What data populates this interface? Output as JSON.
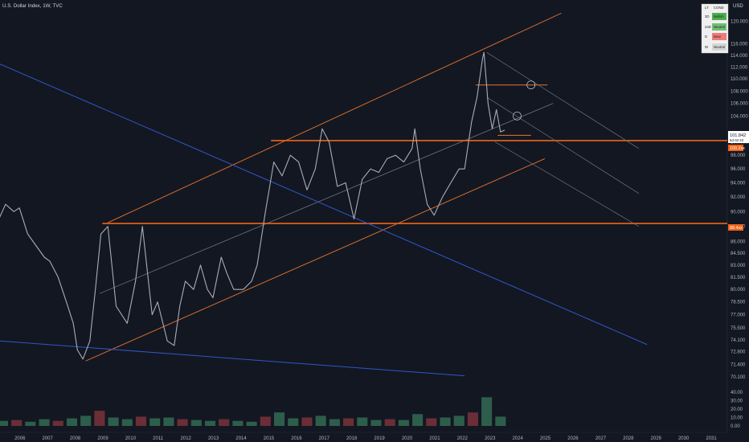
{
  "header": {
    "title": "U.S. Dollar Index, 1W, TVC",
    "currency": "USD"
  },
  "colors": {
    "background": "#131722",
    "price_line": "#a9adb7",
    "channel_orange": "#e8742b",
    "support_line": "#f06418",
    "trend_blue": "#2f57c7",
    "gray_line": "#6f737d",
    "volume_up": "#2d5e4b",
    "volume_down": "#6b2e36",
    "last_price_bg": "#ffffff",
    "level_tag": "#f06418"
  },
  "chart_data": [
    {
      "type": "line",
      "series": [
        {
          "name": "",
          "x": [
            2005.0,
            2005.2,
            2005.5,
            2005.8,
            2006.0,
            2006.3,
            2006.6,
            2006.9,
            2007.1,
            2007.4,
            2007.7,
            2007.95,
            2008.1,
            2008.3,
            2008.55,
            2008.75,
            2008.95,
            2009.2,
            2009.5,
            2009.9,
            2010.2,
            2010.45,
            2010.8,
            2011.0,
            2011.35,
            2011.6,
            2011.8,
            2012.0,
            2012.3,
            2012.55,
            2012.8,
            2013.0,
            2013.3,
            2013.5,
            2013.75,
            2014.1,
            2014.4,
            2014.6,
            2014.9,
            2015.2,
            2015.5,
            2015.8,
            2016.1,
            2016.4,
            2016.7,
            2016.95,
            2017.2,
            2017.5,
            2017.8,
            2018.1,
            2018.4,
            2018.7,
            2019.0,
            2019.3,
            2019.6,
            2019.9,
            2020.2,
            2020.3,
            2020.5,
            2020.75,
            2021.0,
            2021.3,
            2021.6,
            2021.9,
            2022.1,
            2022.35,
            2022.55,
            2022.75,
            2022.8,
            2022.95,
            2023.1,
            2023.25,
            2023.4,
            2023.55
          ],
          "y": [
            85.0,
            88.5,
            91.0,
            90.0,
            90.5,
            87.0,
            85.5,
            84.0,
            83.5,
            81.5,
            78.5,
            76.0,
            73.0,
            72.0,
            74.0,
            80.0,
            87.0,
            88.0,
            78.0,
            76.0,
            81.0,
            88.0,
            77.0,
            78.5,
            74.0,
            73.5,
            78.0,
            81.0,
            80.0,
            83.0,
            80.0,
            79.0,
            84.0,
            82.0,
            80.0,
            80.0,
            81.0,
            83.0,
            90.0,
            97.0,
            95.0,
            98.0,
            97.0,
            93.0,
            96.0,
            102.0,
            100.0,
            93.5,
            94.0,
            89.0,
            94.5,
            96.0,
            95.5,
            97.5,
            98.0,
            97.0,
            99.0,
            102.0,
            96.0,
            91.0,
            89.5,
            92.0,
            94.0,
            96.0,
            96.0,
            103.0,
            107.0,
            113.5,
            114.5,
            106.0,
            102.0,
            105.0,
            101.5,
            101.8
          ]
        }
      ],
      "xlabel": "",
      "ylabel": "",
      "xlim": [
        2005.3,
        2031.6
      ],
      "ylim": [
        70.0,
        122.0
      ],
      "log_scale": true,
      "x_ticks": [
        "2006",
        "2007",
        "2008",
        "2009",
        "2010",
        "2011",
        "2012",
        "2013",
        "2014",
        "2015",
        "2016",
        "2017",
        "2018",
        "2019",
        "2020",
        "2021",
        "2022",
        "2023",
        "2024",
        "2025",
        "2026",
        "2027",
        "2028",
        "2029",
        "2030",
        "2031"
      ],
      "y_ticks": [
        "120.000",
        "116.000",
        "114.000",
        "112.000",
        "110.000",
        "108.000",
        "106.000",
        "104.000",
        "100.000",
        "98.000",
        "96.000",
        "94.000",
        "92.000",
        "90.000",
        "88.000",
        "86.000",
        "84.500",
        "83.000",
        "81.500",
        "80.000",
        "78.500",
        "77.000",
        "75.500",
        "74.100",
        "72.800",
        "71.400",
        "70.100"
      ],
      "last_price": "101.842",
      "countdown": "5d 02:43",
      "level_tags": [
        "100.2xx",
        "88.4xx"
      ],
      "grid": false,
      "legend": "none",
      "drawings": [
        {
          "name": "channel-top",
          "x": [
            2009.2,
            2025.6
          ],
          "y": [
            88.5,
            121.5
          ]
        },
        {
          "name": "channel-bottom",
          "x": [
            2008.4,
            2025.0
          ],
          "y": [
            71.8,
            97.5
          ]
        },
        {
          "name": "channel-mid",
          "x": [
            2008.9,
            2025.3
          ],
          "y": [
            79.5,
            106.0
          ]
        },
        {
          "name": "support-upper",
          "x": [
            2015.1,
            2031.6
          ],
          "y": [
            100.2,
            100.2
          ]
        },
        {
          "name": "support-lower",
          "x": [
            2009.0,
            2031.6
          ],
          "y": [
            88.4,
            88.4
          ]
        },
        {
          "name": "resistance-short",
          "x": [
            2022.5,
            2025.1
          ],
          "y": [
            109.0,
            109.0
          ]
        },
        {
          "name": "post-peak-short",
          "x": [
            2023.3,
            2024.5
          ],
          "y": [
            101.0,
            101.0
          ]
        },
        {
          "name": "trend-blue-long",
          "x": [
            2005.3,
            2028.7
          ],
          "y": [
            112.5,
            73.6
          ]
        },
        {
          "name": "trend-blue-bottom",
          "x": [
            2005.3,
            2022.1
          ],
          "y": [
            74.0,
            70.2
          ]
        },
        {
          "name": "fan-1",
          "x": [
            2022.9,
            2028.4
          ],
          "y": [
            114.5,
            99.0
          ]
        },
        {
          "name": "fan-2",
          "x": [
            2022.9,
            2028.4
          ],
          "y": [
            107.0,
            92.5
          ]
        },
        {
          "name": "fan-3",
          "x": [
            2023.2,
            2028.4
          ],
          "y": [
            100.0,
            88.0
          ]
        }
      ],
      "annotations": [
        {
          "name": "circle-1",
          "x": 2024.5,
          "y": 109.0
        },
        {
          "name": "circle-2",
          "x": 2024.0,
          "y": 104.0
        }
      ]
    },
    {
      "type": "bar",
      "x": [
        2005.4,
        2005.9,
        2006.4,
        2006.9,
        2007.4,
        2007.9,
        2008.4,
        2008.9,
        2009.4,
        2009.9,
        2010.4,
        2010.9,
        2011.4,
        2011.9,
        2012.4,
        2012.9,
        2013.4,
        2013.9,
        2014.4,
        2014.9,
        2015.4,
        2015.9,
        2016.4,
        2016.9,
        2017.4,
        2017.9,
        2018.4,
        2018.9,
        2019.4,
        2019.9,
        2020.4,
        2020.9,
        2021.4,
        2021.9,
        2022.4,
        2022.9,
        2023.4
      ],
      "values": [
        6,
        7,
        5,
        8,
        6,
        9,
        12,
        18,
        10,
        8,
        11,
        9,
        10,
        8,
        7,
        6,
        8,
        6,
        5,
        11,
        16,
        9,
        10,
        12,
        8,
        9,
        10,
        7,
        8,
        7,
        14,
        9,
        10,
        12,
        16,
        34,
        11
      ],
      "ylim": [
        0,
        40
      ],
      "y_ticks": [
        "40.00",
        "30.00",
        "20.00",
        "10.00",
        "0.00"
      ]
    }
  ],
  "table": {
    "headers": [
      "LT",
      "COND"
    ],
    "rows": [
      {
        "tf": "3D",
        "cond": "Bullish"
      },
      {
        "tf": "24D",
        "cond": "Neutral"
      },
      {
        "tf": "D",
        "cond": "Bear"
      },
      {
        "tf": "W",
        "cond": "Neutral"
      }
    ]
  }
}
